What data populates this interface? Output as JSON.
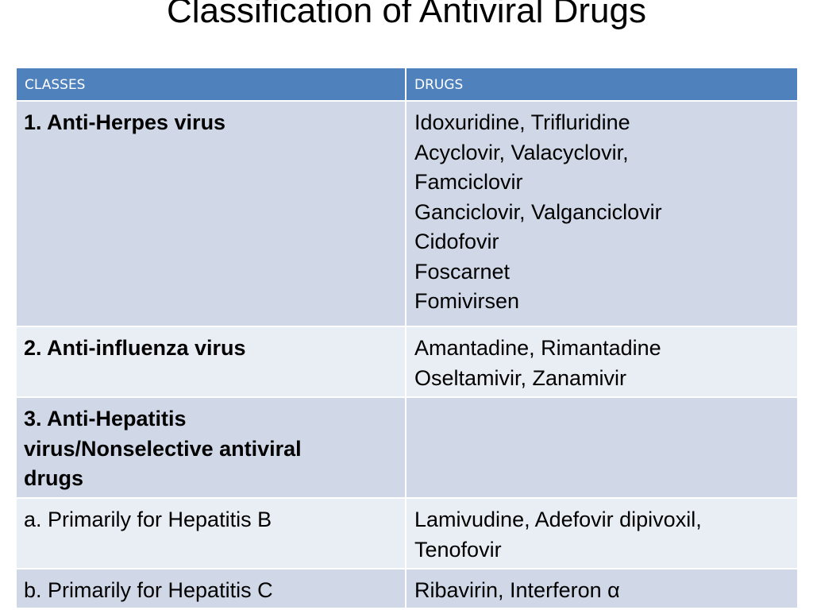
{
  "title": "Classification of Antiviral Drugs",
  "table": {
    "headers": {
      "classes": "CLASSES",
      "drugs": "DRUGS"
    },
    "rows": [
      {
        "class": "1. Anti-Herpes virus",
        "drugs": [
          "Idoxuridine, Trifluridine",
          "Acyclovir, Valacyclovir,",
          "Famciclovir",
          "Ganciclovir, Valganciclovir",
          "Cidofovir",
          "Foscarnet",
          "Fomivirsen"
        ]
      },
      {
        "class": "2. Anti-influenza virus",
        "drugs": [
          "Amantadine, Rimantadine",
          "Oseltamivir, Zanamivir"
        ]
      },
      {
        "class_lines": [
          "3. Anti-Hepatitis",
          "virus/Nonselective antiviral",
          "drugs"
        ],
        "drugs": []
      },
      {
        "class": "a. Primarily for Hepatitis B",
        "drugs": [
          "Lamivudine, Adefovir dipivoxil,",
          "Tenofovir"
        ]
      },
      {
        "class": "b. Primarily for Hepatitis C",
        "drugs": [
          "Ribavirin, Interferon α"
        ]
      }
    ]
  }
}
